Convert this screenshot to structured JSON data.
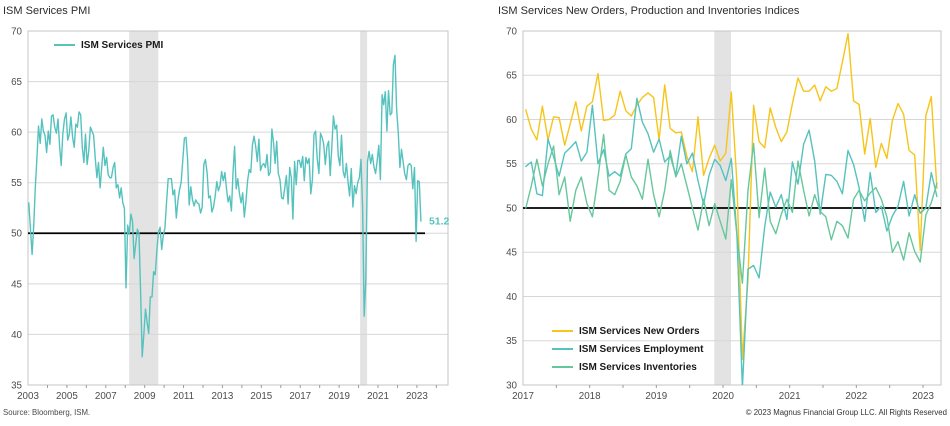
{
  "page": {
    "background": "#ffffff"
  },
  "footer": {
    "source": "Source: Bloomberg, ISM.",
    "copyright": "© 2023 Magnus Financial Group LLC. All Rights Reserved"
  },
  "colors": {
    "teal": "#56c2be",
    "yellow": "#f6c51a",
    "green": "#67c79c",
    "recession_band": "#e3e3e3",
    "grid": "#d7d7d7",
    "plot_border": "#c4c4c4",
    "hline": "#000000",
    "axis_text": "#4d4d4d",
    "tick": "#9b9b9b"
  },
  "chart_data": [
    {
      "type": "line",
      "title": "ISM Services PMI",
      "x_frequency": "monthly",
      "x_start_year": 2003,
      "xlim": [
        2003,
        2024.6
      ],
      "ylim": [
        35,
        70
      ],
      "y_ticks": [
        35,
        40,
        45,
        50,
        55,
        60,
        65,
        70
      ],
      "x_tick_positions": [
        2003,
        2005,
        2007,
        2009,
        2011,
        2013,
        2015,
        2017,
        2019,
        2021,
        2023
      ],
      "x_tick_labels": [
        "2003",
        "2005",
        "2007",
        "2009",
        "2011",
        "2013",
        "2015",
        "2017",
        "2019",
        "2021",
        "2023"
      ],
      "hline": 50,
      "recession_bands": [
        [
          2008.2,
          2009.7
        ],
        [
          2020.08,
          2020.44
        ]
      ],
      "last_value_label": "51.2",
      "grid": "horizontal",
      "legend_position": "top-inside",
      "series": [
        {
          "name": "ISM Services PMI",
          "color": "#56c2be",
          "values": [
            53.0,
            50.5,
            47.9,
            50.7,
            54.5,
            57.4,
            60.6,
            58.9,
            61.3,
            60.1,
            59.7,
            58.0,
            60.1,
            58.8,
            61.6,
            61.7,
            60.5,
            59.9,
            61.3,
            58.6,
            56.7,
            59.8,
            61.3,
            61.9,
            59.2,
            59.8,
            61.5,
            59.5,
            58.5,
            60.8,
            60.5,
            62.0,
            61.7,
            58.5,
            57.0,
            59.8,
            56.8,
            58.2,
            60.5,
            60.1,
            59.7,
            57.5,
            55.5,
            57.0,
            54.5,
            56.5,
            58.5,
            56.7,
            57.5,
            55.8,
            55.5,
            55.5,
            56.5,
            57.0,
            54.5,
            54.8,
            53.5,
            54.5,
            53.0,
            52.5,
            44.6,
            50.8,
            49.9,
            51.9,
            51.2,
            47.5,
            49.0,
            50.4,
            50.0,
            44.2,
            37.8,
            40.1,
            42.5,
            41.2,
            40.1,
            43.7,
            43.7,
            46.2,
            45.9,
            48.2,
            50.1,
            50.6,
            48.4,
            49.8,
            50.5,
            53.0,
            55.4,
            55.4,
            55.4,
            53.8,
            54.3,
            51.5,
            53.2,
            54.3,
            55.0,
            57.1,
            59.4,
            59.5,
            57.3,
            52.8,
            54.6,
            53.3,
            52.7,
            53.3,
            53.0,
            52.9,
            52.0,
            52.6,
            56.8,
            57.3,
            56.0,
            53.5,
            53.7,
            52.1,
            52.6,
            53.7,
            55.1,
            54.2,
            54.7,
            56.1,
            55.2,
            56.0,
            54.4,
            53.1,
            53.7,
            52.2,
            56.0,
            58.6,
            54.4,
            55.4,
            53.9,
            53.0,
            54.0,
            51.6,
            53.1,
            55.2,
            56.3,
            56.0,
            58.7,
            59.6,
            58.6,
            57.1,
            59.3,
            56.2,
            56.7,
            56.9,
            56.5,
            57.8,
            55.7,
            56.0,
            60.3,
            59.0,
            56.9,
            59.1,
            55.9,
            55.3,
            53.5,
            53.4,
            54.5,
            55.7,
            52.9,
            56.5,
            55.5,
            51.4,
            57.1,
            54.8,
            57.2,
            57.2,
            56.5,
            57.6,
            55.2,
            57.5,
            56.9,
            57.4,
            53.9,
            55.3,
            59.8,
            60.1,
            57.4,
            55.9,
            59.9,
            59.5,
            58.8,
            56.8,
            58.6,
            59.1,
            55.7,
            58.5,
            61.6,
            60.3,
            60.7,
            57.6,
            56.7,
            59.7,
            56.1,
            55.5,
            56.9,
            55.1,
            53.7,
            56.4,
            52.6,
            54.7,
            53.9,
            55.0,
            55.5,
            57.3,
            52.5,
            41.8,
            45.4,
            57.1,
            58.1,
            56.9,
            57.8,
            56.6,
            55.9,
            57.2,
            58.7,
            55.3,
            63.7,
            62.7,
            64.0,
            60.1,
            64.1,
            61.7,
            61.9,
            66.7,
            67.6,
            62.3,
            59.9,
            56.5,
            58.3,
            57.1,
            55.9,
            55.3,
            56.7,
            56.9,
            56.7,
            54.4,
            56.5,
            49.2,
            55.2,
            55.1,
            51.2
          ]
        }
      ]
    },
    {
      "type": "line",
      "title": "ISM Services New Orders, Production and Inventories Indices",
      "x_frequency": "monthly",
      "x_start_year": 2017,
      "xlim": [
        2017,
        2023.27
      ],
      "ylim": [
        30,
        70
      ],
      "y_ticks": [
        30,
        35,
        40,
        45,
        50,
        55,
        60,
        65,
        70
      ],
      "x_tick_positions": [
        2017,
        2018,
        2019,
        2020,
        2021,
        2022,
        2023
      ],
      "x_tick_labels": [
        "2017",
        "2018",
        "2019",
        "2020",
        "2021",
        "2022",
        "2023"
      ],
      "hline": 50,
      "recession_bands": [
        [
          2019.87,
          2020.12
        ]
      ],
      "grid": "horizontal",
      "legend_position": "bottom-left-inside",
      "series": [
        {
          "name": "ISM Services New Orders",
          "color": "#f6c51a",
          "values": [
            61.1,
            58.9,
            57.7,
            61.5,
            57.7,
            60.3,
            60.2,
            57.1,
            59.5,
            62.0,
            58.7,
            61.5,
            62.0,
            65.2,
            59.9,
            60.0,
            60.5,
            63.2,
            61.0,
            60.4,
            61.6,
            62.5,
            63.0,
            62.5,
            57.7,
            63.9,
            59.0,
            58.5,
            58.6,
            55.8,
            54.1,
            60.3,
            53.7,
            55.6,
            57.1,
            55.3,
            56.2,
            63.1,
            52.9,
            32.9,
            41.9,
            61.6,
            57.5,
            56.8,
            61.3,
            59.1,
            57.5,
            58.6,
            61.8,
            64.7,
            63.2,
            63.2,
            63.9,
            62.1,
            63.7,
            63.2,
            63.5,
            66.5,
            69.7,
            62.1,
            61.7,
            56.1,
            60.1,
            54.6,
            57.3,
            55.6,
            59.9,
            61.8,
            60.6,
            56.5,
            56.0,
            45.2,
            60.4,
            62.6,
            52.2
          ]
        },
        {
          "name": "ISM Services Employment",
          "color": "#56c2be",
          "values": [
            54.7,
            55.2,
            51.6,
            51.4,
            57.8,
            55.8,
            53.6,
            56.2,
            56.8,
            57.5,
            55.3,
            56.3,
            61.6,
            55.0,
            56.6,
            53.6,
            54.1,
            53.6,
            56.1,
            56.7,
            62.4,
            59.7,
            58.4,
            56.3,
            57.8,
            55.2,
            55.9,
            53.7,
            58.1,
            55.0,
            56.2,
            53.1,
            50.4,
            53.7,
            55.5,
            54.8,
            53.1,
            55.6,
            47.0,
            29.7,
            43.1,
            43.5,
            42.1,
            47.9,
            51.8,
            50.1,
            51.5,
            48.7,
            55.2,
            52.7,
            57.2,
            58.8,
            55.3,
            49.3,
            53.8,
            53.7,
            53.0,
            51.6,
            56.5,
            54.9,
            52.3,
            48.5,
            54.0,
            49.5,
            50.2,
            47.4,
            49.1,
            50.2,
            53.0,
            49.1,
            51.5,
            49.4,
            50.0,
            54.0,
            51.3
          ]
        },
        {
          "name": "ISM Services Inventories",
          "color": "#67c79c",
          "values": [
            50.0,
            52.5,
            55.5,
            52.5,
            55.0,
            57.0,
            51.5,
            53.5,
            48.5,
            52.0,
            53.5,
            50.5,
            49.0,
            53.5,
            58.3,
            52.0,
            51.5,
            53.0,
            56.0,
            53.5,
            52.5,
            51.0,
            55.5,
            51.5,
            49.0,
            52.0,
            56.5,
            53.5,
            55.0,
            52.5,
            50.0,
            47.5,
            51.0,
            48.0,
            50.5,
            48.5,
            46.5,
            53.2,
            47.0,
            41.5,
            52.0,
            57.3,
            48.9,
            54.5,
            48.5,
            47.1,
            49.3,
            51.0,
            49.5,
            55.3,
            52.0,
            49.1,
            51.5,
            49.6,
            49.0,
            46.4,
            48.5,
            48.0,
            46.6,
            51.0,
            52.0,
            50.8,
            51.7,
            52.3,
            51.0,
            49.0,
            45.0,
            46.2,
            44.1,
            47.2,
            45.1,
            43.9,
            49.2,
            50.6,
            52.8
          ]
        }
      ]
    }
  ]
}
